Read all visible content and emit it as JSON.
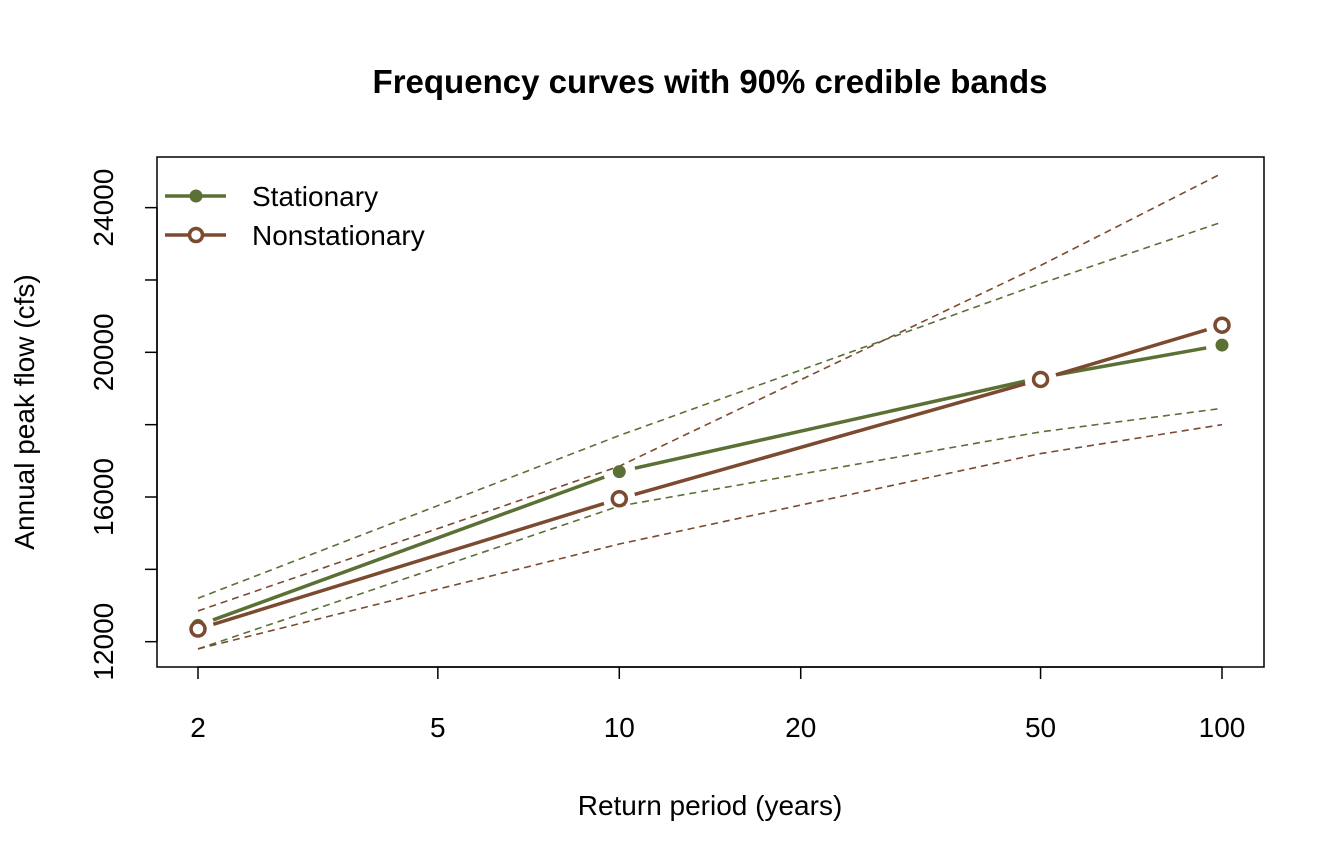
{
  "chart_data": {
    "type": "line",
    "title": "Frequency curves with 90% credible bands",
    "xlabel": "Return period (years)",
    "ylabel": "Annual peak flow (cfs)",
    "x_scale": "log",
    "x": [
      2,
      10,
      50,
      100
    ],
    "x_ticks": [
      2,
      5,
      10,
      20,
      50,
      100
    ],
    "y_ticks": [
      12000,
      14000,
      16000,
      18000,
      20000,
      22000,
      24000
    ],
    "y_tick_labels": [
      "12000",
      "",
      "16000",
      "",
      "20000",
      "",
      "24000"
    ],
    "ylim": [
      11300,
      25400
    ],
    "grid": false,
    "legend_position": "top-left",
    "series": [
      {
        "name": "Stationary",
        "color": "#5a7035",
        "marker": "filled-circle",
        "values": [
          12450,
          16700,
          19300,
          20200
        ],
        "lower_90": [
          11800,
          15750,
          17800,
          18450
        ],
        "upper_90": [
          13200,
          17700,
          21900,
          23600
        ]
      },
      {
        "name": "Nonstationary",
        "color": "#7b4a30",
        "marker": "open-circle",
        "values": [
          12350,
          15950,
          19250,
          20750
        ],
        "lower_90": [
          11800,
          14700,
          17200,
          18000
        ],
        "upper_90": [
          12850,
          16850,
          22400,
          24950
        ]
      }
    ]
  }
}
